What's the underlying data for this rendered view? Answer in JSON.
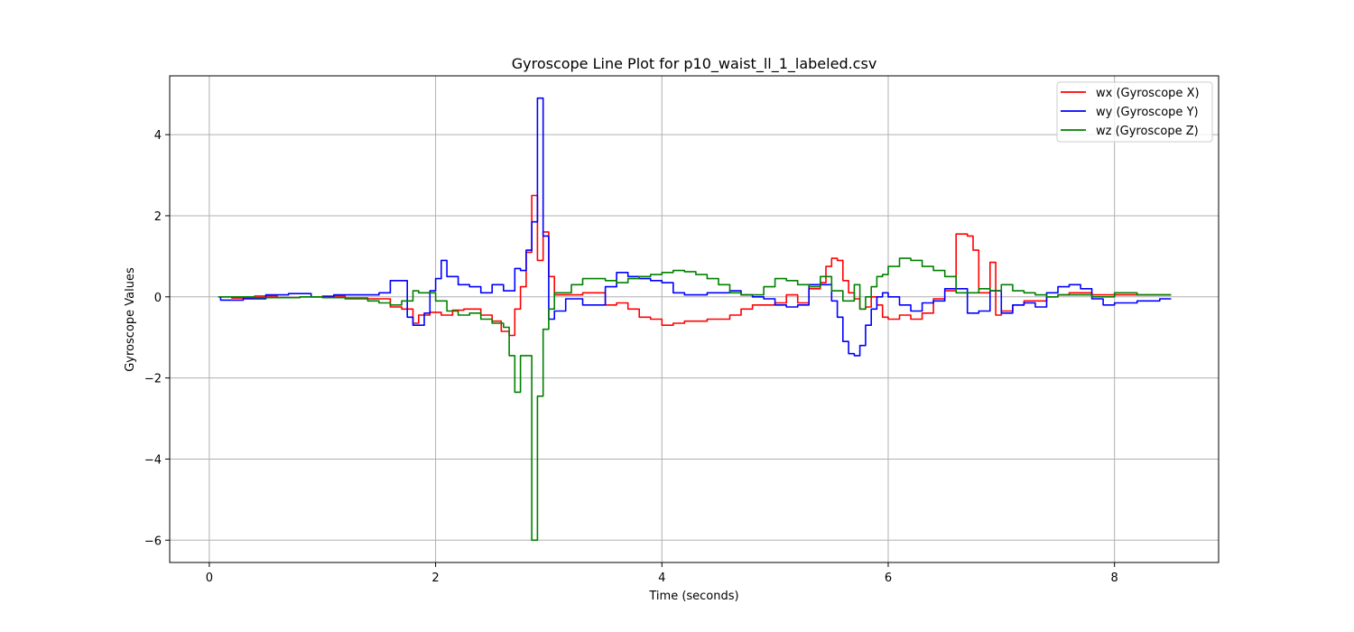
{
  "chart_data": {
    "type": "line",
    "title": "Gyroscope Line Plot for p10_waist_ll_1_labeled.csv",
    "xlabel": "Time (seconds)",
    "ylabel": "Gyroscope Values",
    "xlim": [
      -0.35,
      8.92
    ],
    "ylim": [
      -6.55,
      5.45
    ],
    "xticks": [
      0,
      2,
      4,
      6,
      8
    ],
    "yticks": [
      -6,
      -4,
      -2,
      0,
      2,
      4
    ],
    "xtick_labels": [
      "0",
      "2",
      "4",
      "6",
      "8"
    ],
    "ytick_labels": [
      "−6",
      "−4",
      "−2",
      "0",
      "2",
      "4"
    ],
    "grid": true,
    "legend_position": "top-right",
    "series": [
      {
        "name": "wx (Gyroscope X)",
        "color": "#ff0000",
        "step": true,
        "x": [
          0.08,
          0.2,
          0.4,
          0.6,
          0.8,
          1.0,
          1.2,
          1.4,
          1.6,
          1.7,
          1.8,
          1.85,
          1.95,
          2.05,
          2.15,
          2.25,
          2.4,
          2.5,
          2.58,
          2.65,
          2.7,
          2.75,
          2.8,
          2.85,
          2.9,
          2.95,
          3.0,
          3.05,
          3.15,
          3.3,
          3.5,
          3.6,
          3.7,
          3.8,
          3.9,
          4.0,
          4.1,
          4.2,
          4.4,
          4.6,
          4.7,
          4.8,
          4.9,
          5.0,
          5.1,
          5.2,
          5.3,
          5.4,
          5.45,
          5.5,
          5.55,
          5.6,
          5.65,
          5.7,
          5.75,
          5.8,
          5.85,
          5.9,
          5.95,
          6.0,
          6.1,
          6.2,
          6.3,
          6.4,
          6.5,
          6.6,
          6.7,
          6.75,
          6.8,
          6.9,
          6.95,
          7.0,
          7.1,
          7.2,
          7.3,
          7.4,
          7.5,
          7.6,
          7.8,
          8.0,
          8.2,
          8.4,
          8.5
        ],
        "y": [
          0.0,
          -0.03,
          0.02,
          -0.02,
          0.0,
          0.02,
          -0.03,
          -0.05,
          -0.25,
          -0.3,
          -0.65,
          -0.45,
          -0.38,
          -0.45,
          -0.33,
          -0.3,
          -0.45,
          -0.6,
          -0.85,
          -0.95,
          -0.3,
          0.25,
          1.1,
          2.5,
          0.9,
          1.6,
          0.5,
          0.05,
          0.05,
          0.1,
          -0.2,
          -0.15,
          -0.3,
          -0.5,
          -0.55,
          -0.7,
          -0.65,
          -0.6,
          -0.55,
          -0.45,
          -0.3,
          -0.2,
          -0.2,
          -0.15,
          0.05,
          -0.15,
          0.2,
          0.35,
          0.75,
          0.95,
          0.9,
          0.4,
          0.1,
          -0.05,
          -0.3,
          -0.25,
          0.0,
          -0.2,
          -0.5,
          -0.55,
          -0.45,
          -0.55,
          -0.4,
          -0.05,
          0.15,
          1.55,
          1.5,
          1.15,
          0.1,
          0.85,
          -0.45,
          -0.35,
          -0.2,
          -0.1,
          -0.1,
          0.0,
          0.05,
          0.1,
          0.05,
          0.05,
          0.05,
          0.05,
          0.05
        ]
      },
      {
        "name": "wy (Gyroscope Y)",
        "color": "#0000ff",
        "step": true,
        "x": [
          0.08,
          0.1,
          0.3,
          0.5,
          0.7,
          0.9,
          1.1,
          1.3,
          1.5,
          1.6,
          1.75,
          1.8,
          1.9,
          1.95,
          2.0,
          2.05,
          2.1,
          2.2,
          2.3,
          2.4,
          2.5,
          2.6,
          2.7,
          2.75,
          2.8,
          2.85,
          2.9,
          2.95,
          3.0,
          3.05,
          3.15,
          3.3,
          3.5,
          3.6,
          3.7,
          3.8,
          3.9,
          4.0,
          4.1,
          4.2,
          4.3,
          4.4,
          4.5,
          4.6,
          4.7,
          4.8,
          4.9,
          5.0,
          5.1,
          5.2,
          5.3,
          5.4,
          5.5,
          5.55,
          5.6,
          5.65,
          5.7,
          5.75,
          5.8,
          5.85,
          5.9,
          5.95,
          6.0,
          6.1,
          6.2,
          6.3,
          6.4,
          6.5,
          6.6,
          6.7,
          6.8,
          6.9,
          7.0,
          7.1,
          7.2,
          7.3,
          7.4,
          7.5,
          7.6,
          7.7,
          7.8,
          7.9,
          8.0,
          8.2,
          8.4,
          8.5
        ],
        "y": [
          0.0,
          -0.08,
          -0.05,
          0.05,
          0.08,
          0.0,
          0.05,
          0.05,
          0.1,
          0.4,
          -0.5,
          -0.7,
          -0.4,
          0.15,
          0.45,
          0.9,
          0.5,
          0.3,
          0.25,
          0.1,
          0.3,
          0.15,
          0.7,
          0.65,
          1.15,
          1.85,
          4.9,
          1.5,
          -0.55,
          -0.35,
          -0.05,
          -0.2,
          0.25,
          0.6,
          0.5,
          0.45,
          0.4,
          0.35,
          0.1,
          0.05,
          0.05,
          0.1,
          0.1,
          0.15,
          0.05,
          0.0,
          -0.05,
          -0.2,
          -0.25,
          -0.2,
          0.3,
          0.3,
          -0.1,
          -0.5,
          -1.1,
          -1.4,
          -1.45,
          -1.2,
          -0.7,
          -0.3,
          0.0,
          0.1,
          0.0,
          -0.2,
          -0.35,
          -0.15,
          -0.1,
          0.2,
          0.2,
          -0.4,
          -0.35,
          0.15,
          -0.4,
          -0.2,
          -0.15,
          -0.25,
          0.1,
          0.25,
          0.3,
          0.2,
          -0.05,
          -0.2,
          -0.15,
          -0.1,
          -0.05,
          -0.05
        ]
      },
      {
        "name": "wz (Gyroscope Z)",
        "color": "#008000",
        "step": true,
        "x": [
          0.08,
          0.2,
          0.4,
          0.6,
          0.8,
          1.0,
          1.2,
          1.4,
          1.5,
          1.6,
          1.7,
          1.8,
          1.85,
          1.9,
          2.0,
          2.1,
          2.2,
          2.3,
          2.4,
          2.5,
          2.6,
          2.65,
          2.7,
          2.75,
          2.8,
          2.85,
          2.9,
          2.95,
          3.0,
          3.05,
          3.1,
          3.2,
          3.3,
          3.4,
          3.5,
          3.6,
          3.7,
          3.8,
          3.9,
          4.0,
          4.1,
          4.2,
          4.3,
          4.4,
          4.5,
          4.6,
          4.7,
          4.8,
          4.9,
          5.0,
          5.1,
          5.2,
          5.3,
          5.4,
          5.5,
          5.6,
          5.7,
          5.75,
          5.8,
          5.85,
          5.9,
          5.95,
          6.0,
          6.1,
          6.2,
          6.3,
          6.4,
          6.5,
          6.6,
          6.7,
          6.8,
          6.9,
          7.0,
          7.1,
          7.2,
          7.3,
          7.4,
          7.5,
          7.6,
          7.8,
          8.0,
          8.2,
          8.4,
          8.5
        ],
        "y": [
          0.0,
          0.0,
          -0.02,
          -0.02,
          0.0,
          -0.02,
          -0.05,
          -0.1,
          -0.15,
          -0.2,
          -0.1,
          0.15,
          0.1,
          0.1,
          -0.1,
          -0.35,
          -0.45,
          -0.4,
          -0.55,
          -0.65,
          -0.75,
          -1.45,
          -2.35,
          -1.45,
          -1.45,
          -6.0,
          -2.45,
          -0.8,
          -0.3,
          0.1,
          0.1,
          0.3,
          0.45,
          0.45,
          0.4,
          0.35,
          0.45,
          0.5,
          0.55,
          0.6,
          0.65,
          0.62,
          0.55,
          0.45,
          0.3,
          0.1,
          0.05,
          0.05,
          0.25,
          0.45,
          0.4,
          0.3,
          0.25,
          0.5,
          0.15,
          -0.1,
          0.3,
          -0.3,
          0.0,
          0.25,
          0.5,
          0.55,
          0.75,
          0.95,
          0.9,
          0.75,
          0.65,
          0.5,
          0.1,
          0.1,
          0.2,
          0.15,
          0.3,
          0.15,
          0.1,
          0.05,
          0.0,
          0.05,
          0.05,
          0.0,
          0.1,
          0.05,
          0.05,
          0.05
        ]
      }
    ]
  }
}
